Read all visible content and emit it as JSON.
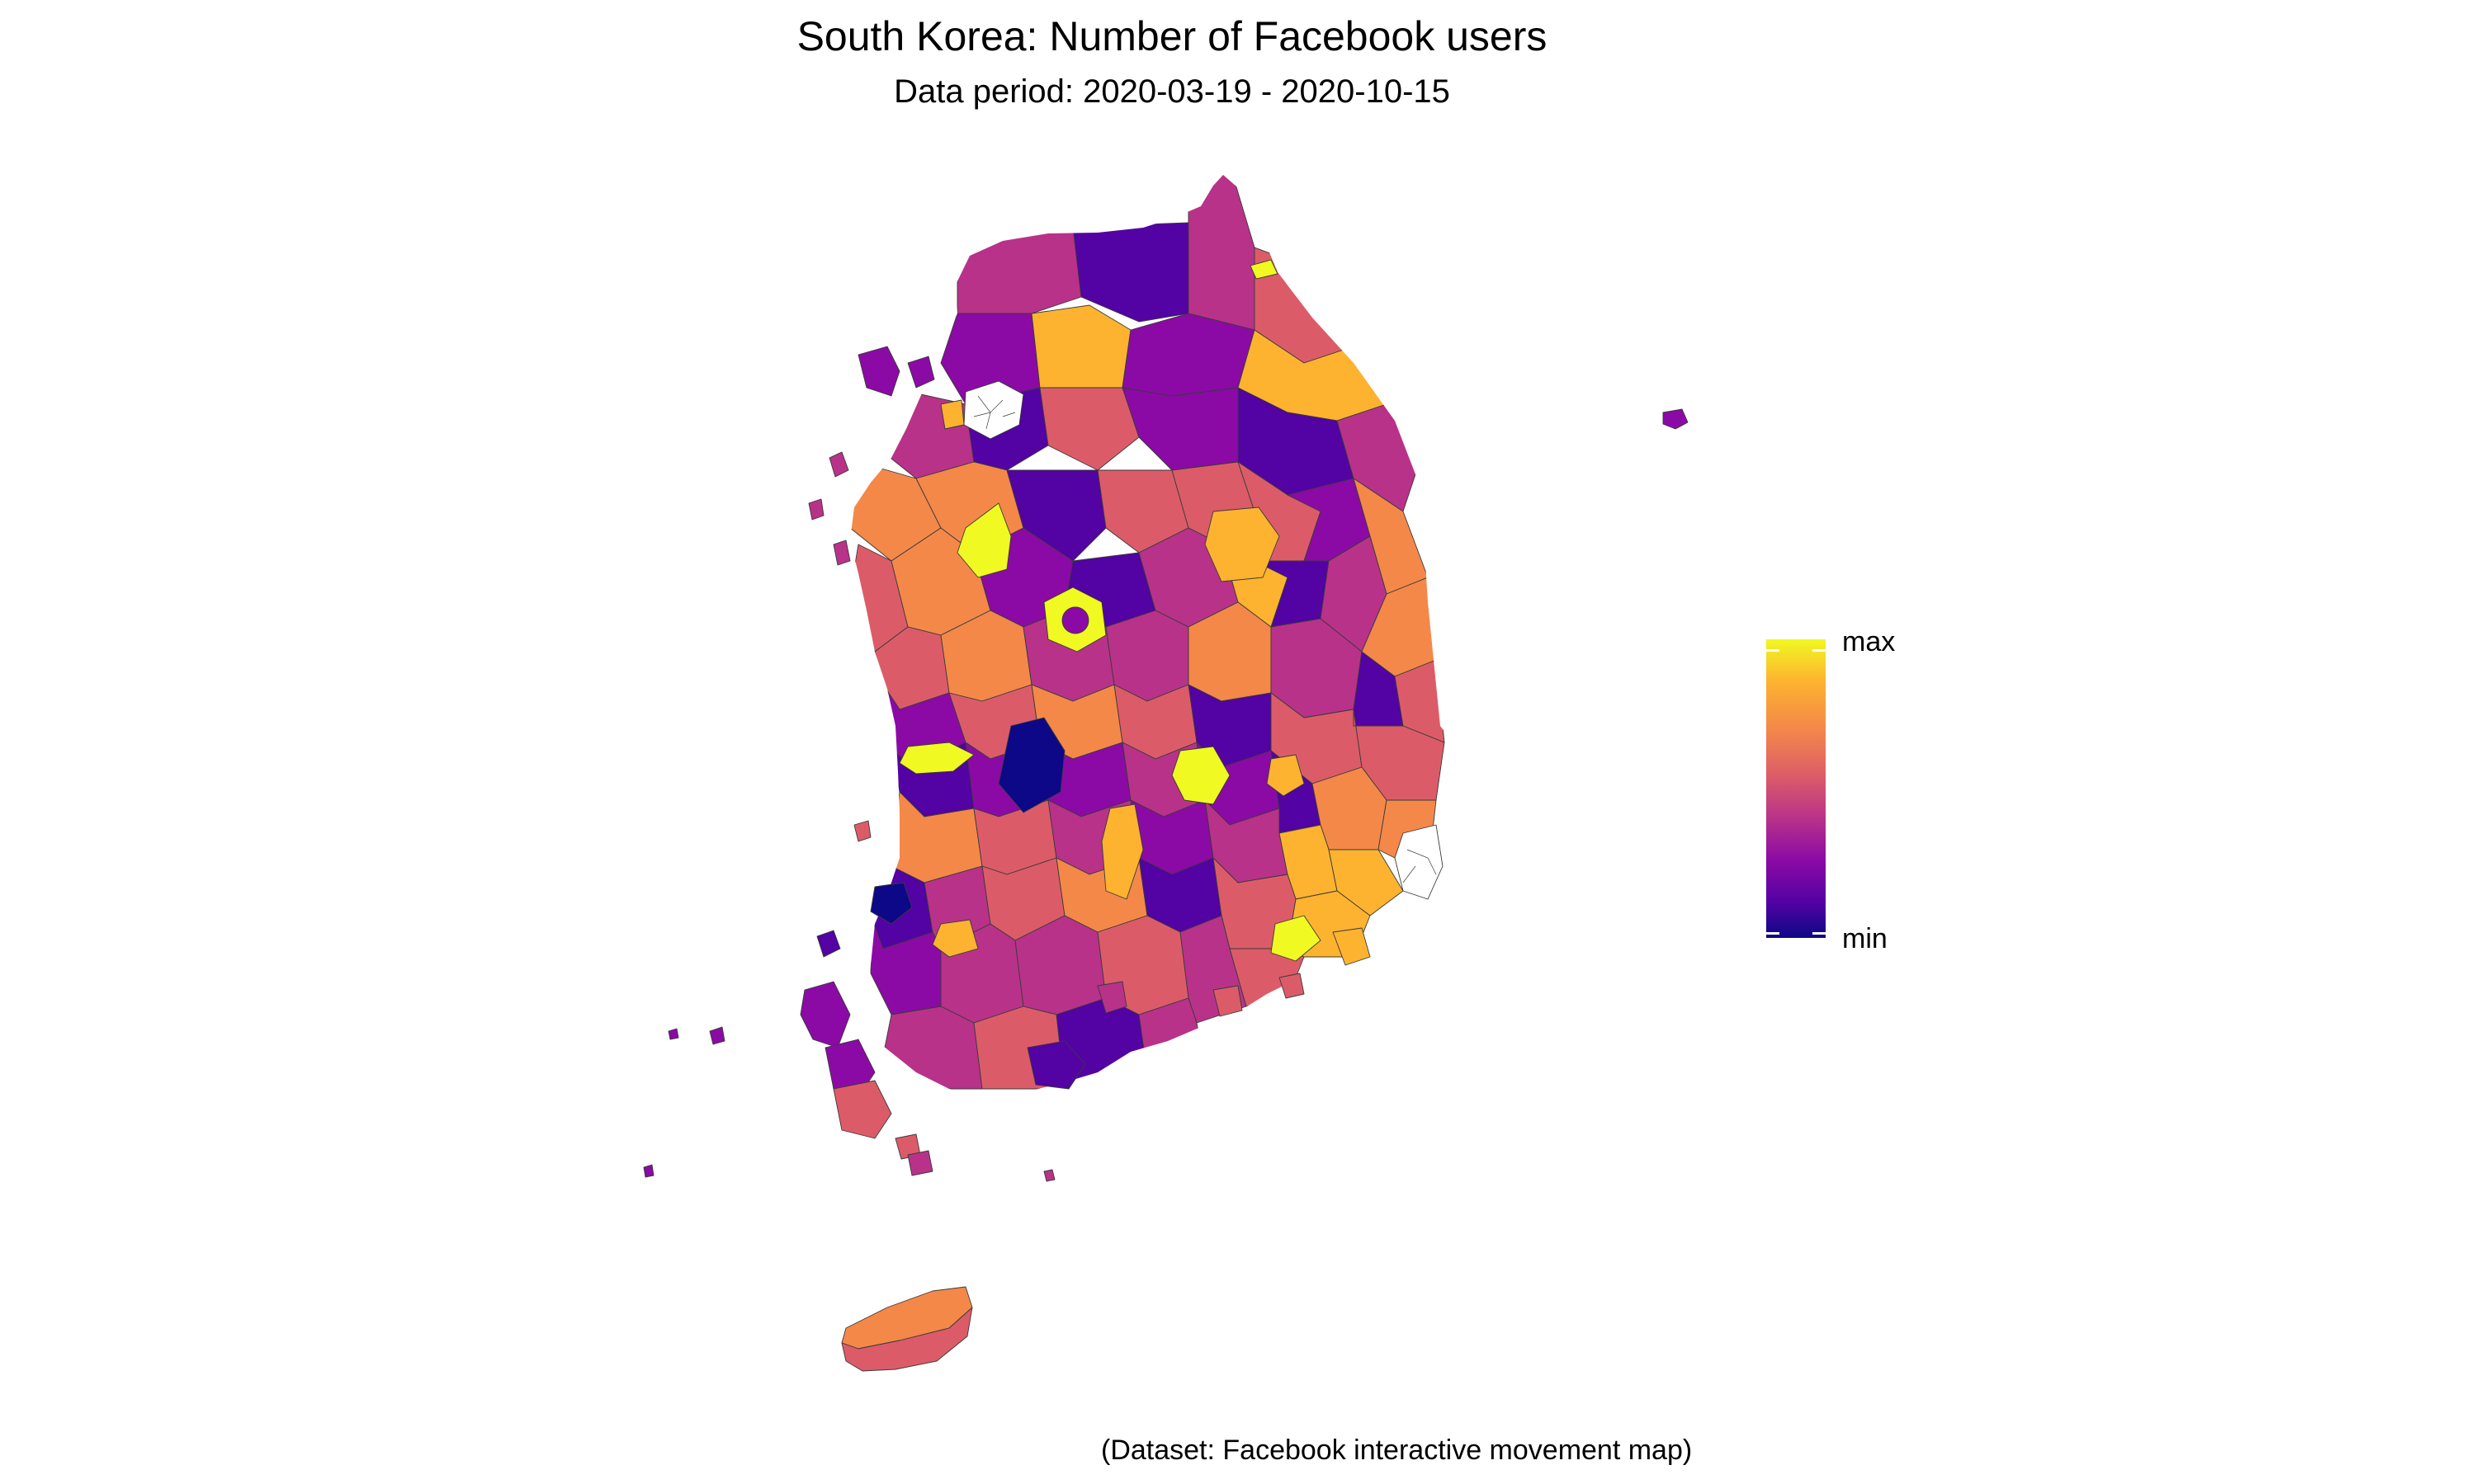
{
  "title": "South Korea: Number of Facebook users",
  "subtitle": "Data period: 2020-03-19 - 2020-10-15",
  "caption": "(Dataset: Facebook interactive movement map)",
  "legend": {
    "max_label": "max",
    "min_label": "min",
    "colors": [
      "#0d0887",
      "#5302a3",
      "#8b0aa5",
      "#b83289",
      "#db5c68",
      "#f48849",
      "#fdb32f",
      "#f0f921"
    ]
  },
  "no_data_color": "#ffffff"
}
